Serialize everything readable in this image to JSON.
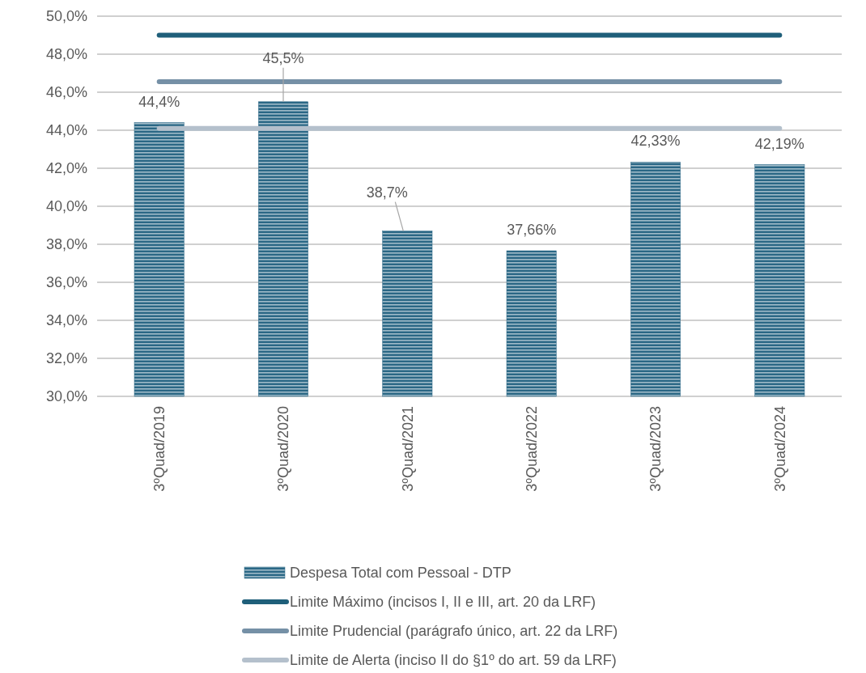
{
  "chart_data": {
    "type": "bar",
    "categories": [
      "3ºQuad/2019",
      "3ºQuad/2020",
      "3ºQuad/2021",
      "3ºQuad/2022",
      "3ºQuad/2023",
      "3ºQuad/2024"
    ],
    "series": [
      {
        "name": "Despesa Total com Pessoal - DTP",
        "color": "#2a6785",
        "values": [
          44.4,
          45.5,
          38.7,
          37.66,
          42.33,
          42.19
        ],
        "value_labels": [
          "44,4%",
          "45,5%",
          "38,7%",
          "37,66%",
          "42,33%",
          "42,19%"
        ]
      },
      {
        "name": "Limite Máximo (incisos I, II e III, art. 20 da LRF)",
        "type": "line",
        "color": "#1f5f7a",
        "values": [
          49.0,
          49.0,
          49.0,
          49.0,
          49.0,
          49.0
        ]
      },
      {
        "name": "Limite Prudencial (parágrafo único, art. 22 da LRF)",
        "type": "line",
        "color": "#7590a6",
        "values": [
          46.55,
          46.55,
          46.55,
          46.55,
          46.55,
          46.55
        ]
      },
      {
        "name": "Limite de Alerta (inciso II do §1º do art. 59 da LRF)",
        "type": "line",
        "color": "#b4c0cc",
        "values": [
          44.1,
          44.1,
          44.1,
          44.1,
          44.1,
          44.1
        ]
      }
    ],
    "ylim": [
      30,
      50
    ],
    "yticks": [
      {
        "value": 30,
        "label": "30,0%"
      },
      {
        "value": 32,
        "label": "32,0%"
      },
      {
        "value": 34,
        "label": "34,0%"
      },
      {
        "value": 36,
        "label": "36,0%"
      },
      {
        "value": 38,
        "label": "38,0%"
      },
      {
        "value": 40,
        "label": "40,0%"
      },
      {
        "value": 42,
        "label": "42,0%"
      },
      {
        "value": 44,
        "label": "44,0%"
      },
      {
        "value": 46,
        "label": "46,0%"
      },
      {
        "value": 48,
        "label": "48,0%"
      },
      {
        "value": 50,
        "label": "50,0%"
      }
    ],
    "grid": "y",
    "legend": "bottom"
  }
}
